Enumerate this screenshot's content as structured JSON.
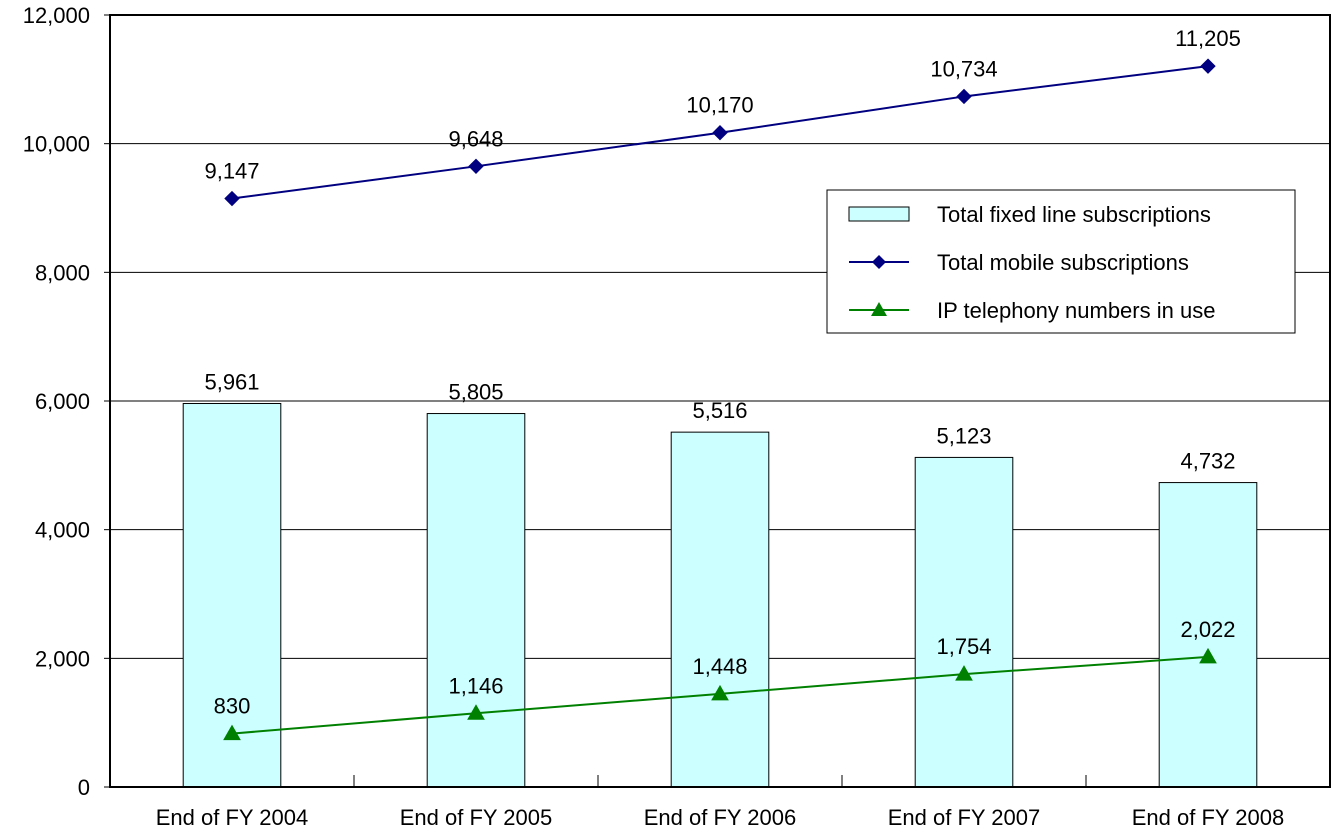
{
  "chart_data": {
    "type": "bar",
    "categories": [
      "End of FY 2004",
      "End of FY 2005",
      "End of FY 2006",
      "End of FY 2007",
      "End of FY 2008"
    ],
    "ylim": [
      0,
      12000
    ],
    "yticks": [
      0,
      2000,
      4000,
      6000,
      8000,
      10000,
      12000
    ],
    "ytick_labels": [
      "0",
      "2,000",
      "4,000",
      "6,000",
      "8,000",
      "10,000",
      "12,000"
    ],
    "grid": true,
    "legend_position": "right",
    "series": [
      {
        "name": "Total fixed line subscriptions",
        "type": "bar",
        "color": "#ccffff",
        "values": [
          5961,
          5805,
          5516,
          5123,
          4732
        ],
        "labels": [
          "5,961",
          "5,805",
          "5,516",
          "5,123",
          "4,732"
        ]
      },
      {
        "name": "Total mobile subscriptions",
        "type": "line",
        "marker": "diamond",
        "color": "#000080",
        "values": [
          9147,
          9648,
          10170,
          10734,
          11205
        ],
        "labels": [
          "9,147",
          "9,648",
          "10,170",
          "10,734",
          "11,205"
        ]
      },
      {
        "name": "IP telephony numbers in use",
        "type": "line",
        "marker": "triangle",
        "color": "#008000",
        "values": [
          830,
          1146,
          1448,
          1754,
          2022
        ],
        "labels": [
          "830",
          "1,146",
          "1,448",
          "1,754",
          "2,022"
        ]
      }
    ]
  }
}
